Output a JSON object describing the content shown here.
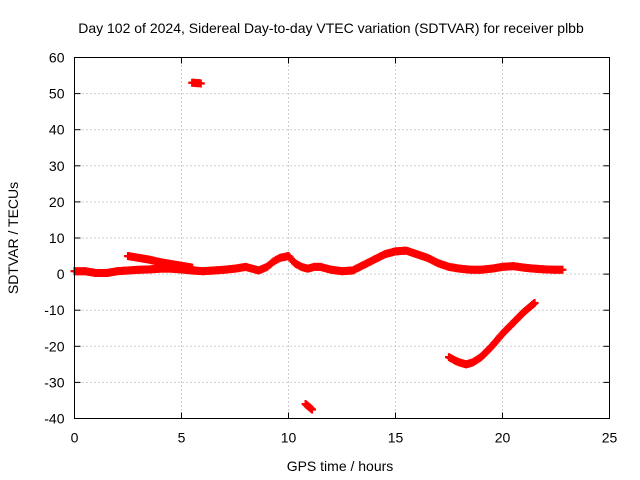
{
  "chart_data": {
    "type": "scatter",
    "title": "Day 102 of 2024, Sidereal Day-to-day VTEC variation (SDTVAR) for receiver plbb",
    "xlabel": "GPS time / hours",
    "ylabel": "SDTVAR / TECUs",
    "xlim": [
      0,
      25
    ],
    "ylim": [
      -40,
      60
    ],
    "xticks": [
      "0",
      "5",
      "10",
      "15",
      "20",
      "25"
    ],
    "yticks": [
      "-40",
      "-30",
      "-20",
      "-10",
      "0",
      "10",
      "20",
      "30",
      "40",
      "50",
      "60"
    ],
    "grid": true,
    "color": "#ff0000",
    "series": [
      {
        "name": "main",
        "x": [
          0.0,
          0.5,
          1.0,
          1.5,
          2.0,
          2.5,
          3.0,
          3.5,
          4.0,
          4.5,
          5.0,
          5.5,
          6.0,
          6.5,
          7.0,
          7.5,
          8.0,
          8.3,
          8.6,
          9.0,
          9.3,
          9.6,
          10.0,
          10.3,
          10.6,
          10.9,
          11.2,
          11.5,
          11.8,
          12.0,
          12.5,
          13.0,
          13.5,
          14.0,
          14.5,
          15.0,
          15.5,
          16.0,
          16.5,
          17.0,
          17.5,
          18.0,
          18.5,
          19.0,
          19.5,
          20.0,
          20.5,
          21.0,
          21.5,
          22.0,
          22.5,
          22.8
        ],
        "y": [
          0.8,
          0.8,
          0.3,
          0.3,
          0.8,
          1.0,
          1.2,
          1.3,
          1.5,
          1.5,
          1.3,
          1.0,
          0.8,
          1.0,
          1.2,
          1.5,
          2.0,
          1.5,
          1.0,
          2.0,
          3.5,
          4.5,
          5.0,
          3.0,
          2.0,
          1.5,
          2.0,
          2.0,
          1.5,
          1.2,
          0.8,
          1.0,
          2.5,
          4.0,
          5.5,
          6.3,
          6.5,
          5.5,
          4.5,
          3.0,
          2.0,
          1.5,
          1.2,
          1.2,
          1.5,
          2.0,
          2.2,
          1.8,
          1.5,
          1.3,
          1.2,
          1.2
        ]
      },
      {
        "name": "segment-2.5h",
        "x": [
          2.5,
          3.0,
          3.5,
          4.0,
          4.5,
          5.0,
          5.5
        ],
        "y": [
          5.0,
          4.5,
          4.0,
          3.3,
          2.8,
          2.3,
          1.8
        ]
      },
      {
        "name": "outlier-top",
        "x": [
          5.5,
          5.6,
          5.7,
          5.8,
          5.9
        ],
        "y": [
          53.0,
          53.0,
          52.9,
          52.9,
          52.8
        ]
      },
      {
        "name": "outlier-bottom",
        "x": [
          10.8,
          10.9,
          11.0,
          11.1
        ],
        "y": [
          -36.0,
          -36.5,
          -37.0,
          -37.5
        ]
      },
      {
        "name": "late-descending",
        "x": [
          17.5,
          17.8,
          18.0,
          18.3,
          18.6,
          19.0,
          19.5,
          20.0,
          20.5,
          21.0,
          21.5
        ],
        "y": [
          -23.0,
          -24.0,
          -24.5,
          -25.0,
          -24.5,
          -23.0,
          -20.0,
          -16.5,
          -13.5,
          -10.5,
          -8.0
        ]
      }
    ]
  }
}
